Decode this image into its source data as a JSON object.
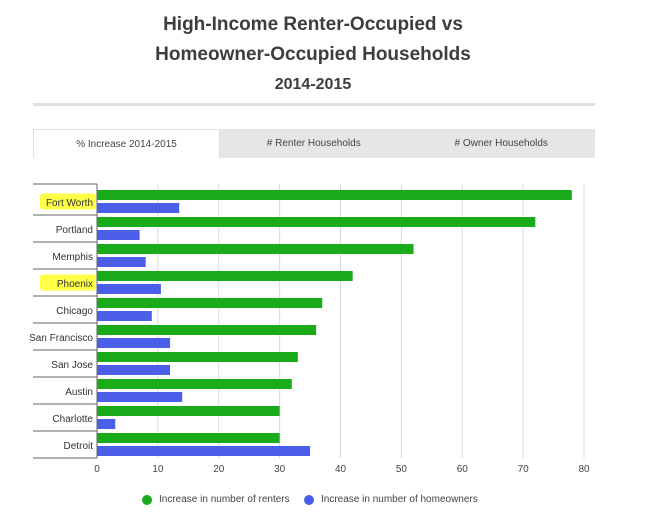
{
  "title": {
    "line1": "High-Income Renter-Occupied vs",
    "line2": "Homeowner-Occupied Households",
    "line3": "2014-2015"
  },
  "tabs": [
    {
      "label": "% Increase 2014-2015",
      "active": true
    },
    {
      "label": "# Renter Households",
      "active": false
    },
    {
      "label": "# Owner Households",
      "active": false
    }
  ],
  "colors": {
    "renters": "#1aab1a",
    "homeowners": "#4a5ee8",
    "highlight": "#ffff33"
  },
  "chart_data": {
    "type": "bar",
    "orientation": "horizontal",
    "categories": [
      "Fort Worth",
      "Portland",
      "Memphis",
      "Phoenix",
      "Chicago",
      "San Francisco",
      "San Jose",
      "Austin",
      "Charlotte",
      "Detroit"
    ],
    "highlighted_categories": [
      "Fort Worth",
      "Phoenix"
    ],
    "series": [
      {
        "name": "Increase in number of renters",
        "values": [
          78,
          72,
          52,
          42,
          37,
          36,
          33,
          32,
          30,
          30
        ]
      },
      {
        "name": "Increase in number of homeowners",
        "values": [
          13.5,
          7,
          8,
          10.5,
          9,
          12,
          12,
          14,
          3,
          35
        ]
      }
    ],
    "xlim": [
      0,
      80
    ],
    "xticks": [
      0,
      10,
      20,
      30,
      40,
      50,
      60,
      70,
      80
    ],
    "grid": true,
    "legend_position": "bottom"
  }
}
